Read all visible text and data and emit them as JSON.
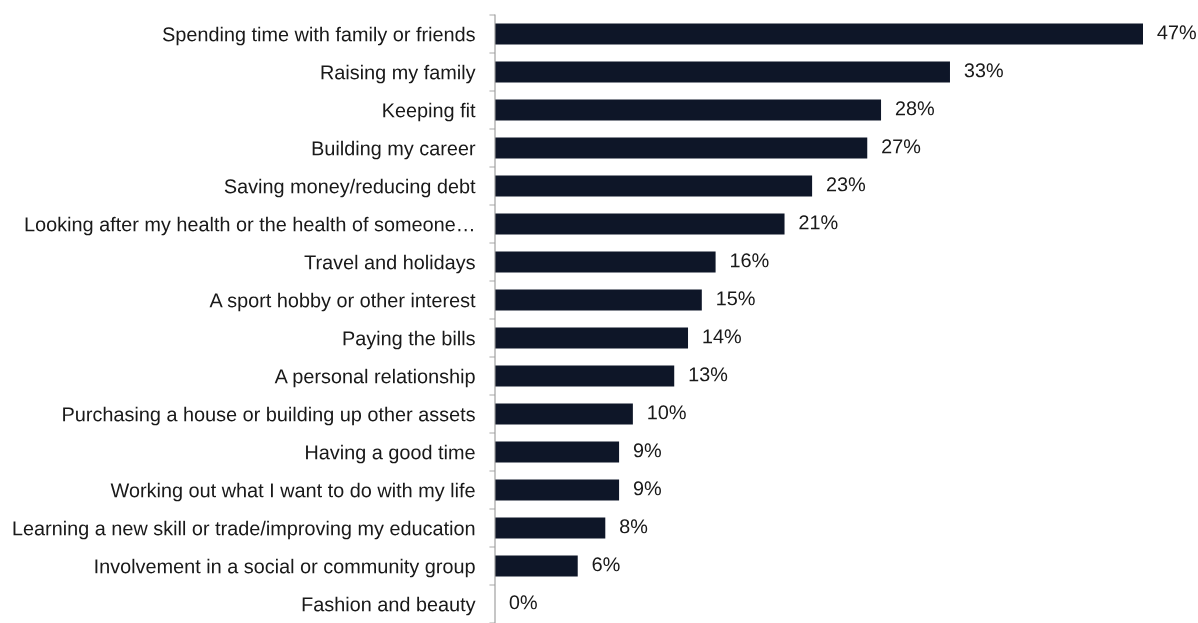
{
  "chart_data": {
    "type": "bar",
    "orientation": "horizontal",
    "categories": [
      "Spending time with family or friends",
      "Raising my family",
      "Keeping fit",
      "Building my career",
      "Saving money/reducing debt",
      "Looking after my health or the health of someone…",
      "Travel and holidays",
      "A sport hobby or other interest",
      "Paying the bills",
      "A personal relationship",
      "Purchasing a house or building up other assets",
      "Having a good time",
      "Working out what I want to do with my life",
      "Learning a new skill or trade/improving my education",
      "Involvement in a social or community group",
      "Fashion and beauty"
    ],
    "values": [
      47,
      33,
      28,
      27,
      23,
      21,
      16,
      15,
      14,
      13,
      10,
      9,
      9,
      8,
      6,
      0
    ],
    "value_labels": [
      "47%",
      "33%",
      "28%",
      "27%",
      "23%",
      "21%",
      "16%",
      "15%",
      "14%",
      "13%",
      "10%",
      "9%",
      "9%",
      "8%",
      "6%",
      "0%"
    ],
    "color": "#0e1628",
    "tick_labels": "y",
    "grid": false,
    "legend": false
  }
}
